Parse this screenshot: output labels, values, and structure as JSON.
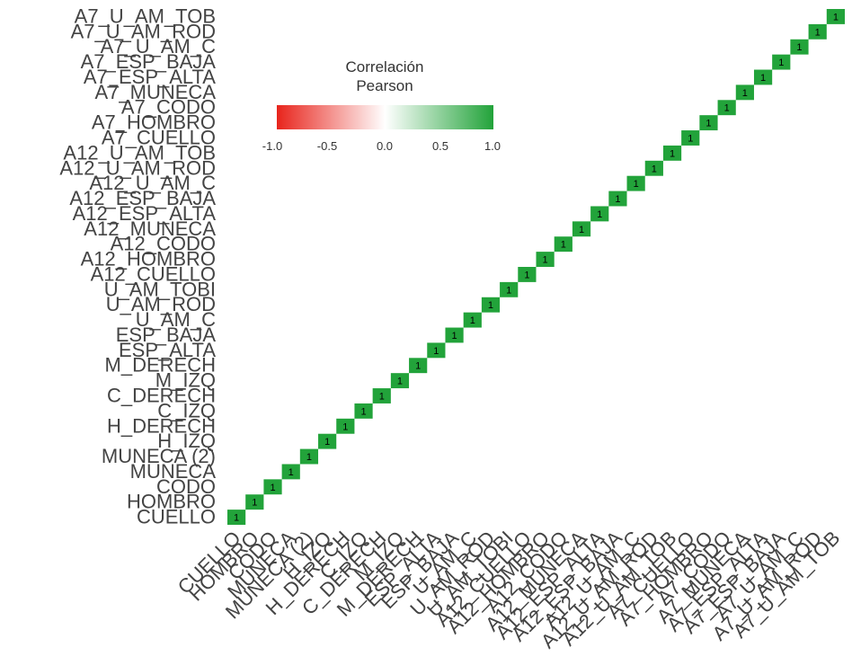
{
  "chart_data": {
    "type": "heatmap",
    "subtype": "lower-triangle correlation matrix",
    "variables": [
      "CUELLO",
      "HOMBRO",
      "CODO",
      "MUNECA",
      "MUNECA (2)",
      "H_IZQ",
      "H_DERECH",
      "C_IZQ",
      "C_DERECH",
      "M_IZQ",
      "M_DERECH",
      "ESP_ALTA",
      "ESP_BAJA",
      "U_AM_C",
      "U_AM_ROD",
      "U_AM_TOBI",
      "A12_CUELLO",
      "A12_HOMBRO",
      "A12_CODO",
      "A12_MUNECA",
      "A12_ESP_ALTA",
      "A12_ESP_BAJA",
      "A12_U_AM_C",
      "A12_U_AM_ROD",
      "A12_U_AM_TOB",
      "A7_CUELLO",
      "A7_HOMBRO",
      "A7_CODO",
      "A7_MUNECA",
      "A7_ESP_ALTA",
      "A7_ESP_BAJA",
      "A7_U_AM_C",
      "A7_U_AM_ROD",
      "A7_U_AM_TOB"
    ],
    "diagonal_value": 1,
    "value_range": [
      -1,
      1
    ],
    "legend": {
      "title_line1": "Correlación",
      "title_line2": "Pearson",
      "ticks": [
        "-1.0",
        "-0.5",
        "0.0",
        "0.5",
        "1.0"
      ],
      "position": "top-left"
    },
    "colors": {
      "negative": "#e8241c",
      "neutral": "#ffffff",
      "positive": "#22a33a"
    },
    "grid": false
  }
}
